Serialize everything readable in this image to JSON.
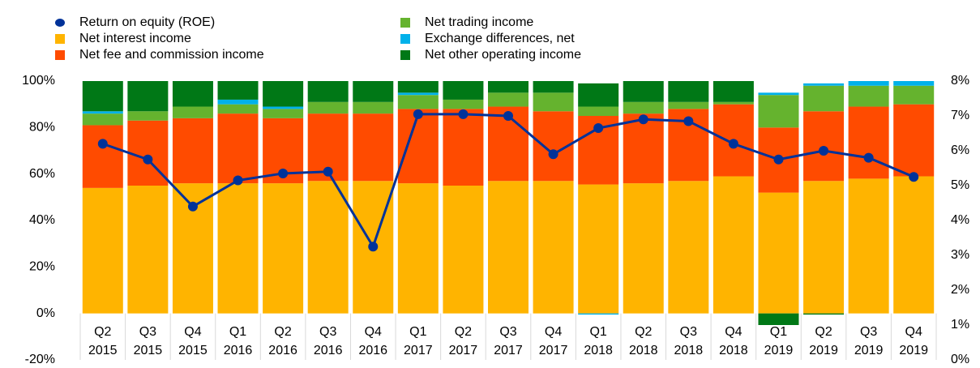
{
  "chart_data": {
    "type": "stacked_bar_line",
    "categories": [
      [
        "Q2",
        "2015"
      ],
      [
        "Q3",
        "2015"
      ],
      [
        "Q4",
        "2015"
      ],
      [
        "Q1",
        "2016"
      ],
      [
        "Q2",
        "2016"
      ],
      [
        "Q3",
        "2016"
      ],
      [
        "Q4",
        "2016"
      ],
      [
        "Q1",
        "2017"
      ],
      [
        "Q2",
        "2017"
      ],
      [
        "Q3",
        "2017"
      ],
      [
        "Q4",
        "2017"
      ],
      [
        "Q1",
        "2018"
      ],
      [
        "Q2",
        "2018"
      ],
      [
        "Q3",
        "2018"
      ],
      [
        "Q4",
        "2018"
      ],
      [
        "Q1",
        "2019"
      ],
      [
        "Q2",
        "2019"
      ],
      [
        "Q3",
        "2019"
      ],
      [
        "Q4",
        "2019"
      ]
    ],
    "series": [
      {
        "name": "Net interest income",
        "color": "#ffb400",
        "values": [
          54,
          55,
          56,
          56,
          56,
          57,
          57,
          56,
          55,
          57,
          57,
          55.5,
          56,
          57,
          59,
          52,
          57,
          58,
          59
        ]
      },
      {
        "name": "Net fee and commission income",
        "color": "#ff4b00",
        "values": [
          27,
          28,
          28,
          30,
          28,
          29,
          29,
          32,
          33,
          32,
          30,
          29.5,
          30,
          31,
          31,
          28,
          30,
          31,
          31
        ]
      },
      {
        "name": "Net trading income",
        "color": "#65b32e",
        "values": [
          5,
          4,
          5,
          4,
          4,
          5,
          5,
          6,
          4,
          6,
          8,
          4,
          5,
          3,
          1,
          14,
          11,
          9,
          8
        ]
      },
      {
        "name": "Exchange differences, net",
        "color": "#00b1ea",
        "values": [
          1,
          0,
          0,
          2,
          1,
          0,
          0,
          1,
          0,
          0,
          0,
          -0.5,
          0,
          0,
          0,
          1,
          1,
          2,
          2
        ]
      },
      {
        "name": "Net other operating income",
        "color": "#007816",
        "values": [
          13,
          13,
          11,
          8,
          11,
          9,
          9,
          5,
          8,
          5,
          5,
          10,
          9,
          9,
          9,
          -5,
          -0.5,
          0,
          0
        ]
      },
      {
        "name": "Return on equity (ROE)",
        "color": "#003299",
        "axis": "y2",
        "type": "line",
        "values": [
          6.2,
          5.75,
          4.4,
          5.15,
          5.35,
          5.4,
          3.25,
          7.05,
          7.05,
          7.0,
          5.9,
          6.65,
          6.9,
          6.85,
          6.2,
          5.75,
          6.0,
          5.8,
          5.25
        ]
      }
    ],
    "ylim": [
      -20,
      100
    ],
    "yticks": [
      {
        "value": -20,
        "label": "-20%"
      },
      {
        "value": 0,
        "label": "0%"
      },
      {
        "value": 20,
        "label": "20%"
      },
      {
        "value": 40,
        "label": "40%"
      },
      {
        "value": 60,
        "label": "60%"
      },
      {
        "value": 80,
        "label": "80%"
      },
      {
        "value": 100,
        "label": "100%"
      }
    ],
    "y2lim": [
      0,
      8
    ],
    "y2ticks": [
      {
        "value": 0,
        "label": "0%"
      },
      {
        "value": 1,
        "label": "1%"
      },
      {
        "value": 2,
        "label": "2%"
      },
      {
        "value": 3,
        "label": "3%"
      },
      {
        "value": 4,
        "label": "4%"
      },
      {
        "value": 5,
        "label": "5%"
      },
      {
        "value": 6,
        "label": "6%"
      },
      {
        "value": 7,
        "label": "7%"
      },
      {
        "value": 8,
        "label": "8%"
      }
    ],
    "legend": "top"
  }
}
